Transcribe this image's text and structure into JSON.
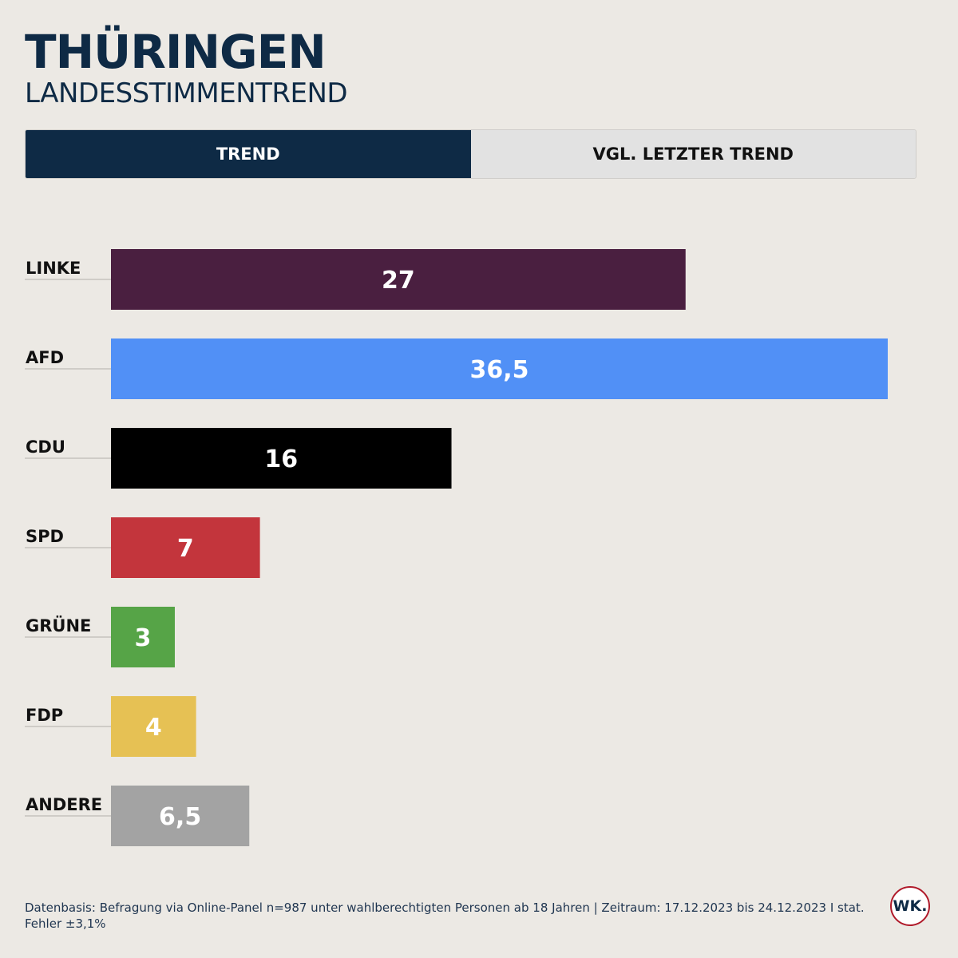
{
  "header": {
    "title": "THÜRINGEN",
    "subtitle": "LANDESSTIMMENTREND"
  },
  "tabs": [
    {
      "label": "TREND",
      "active": true
    },
    {
      "label": "VGL. LETZTER TREND",
      "active": false
    }
  ],
  "chart_data": {
    "type": "bar",
    "orientation": "horizontal",
    "categories": [
      "LINKE",
      "AFD",
      "CDU",
      "SPD",
      "GRÜNE",
      "FDP",
      "ANDERE"
    ],
    "values": [
      27,
      36.5,
      16,
      7,
      3,
      4,
      6.5
    ],
    "value_labels": [
      "27",
      "36,5",
      "16",
      "7",
      "3",
      "4",
      "6,5"
    ],
    "colors": [
      "#4a1f40",
      "#5190f6",
      "#000000",
      "#c3353c",
      "#56a447",
      "#e6c154",
      "#a3a3a3"
    ],
    "xlim": [
      0,
      36.5
    ],
    "grid": false,
    "legend": "none"
  },
  "footer": {
    "source": "Datenbasis: Befragung via Online-Panel n=987 unter wahlberechtigten Personen ab 18 Jahren | Zeitraum: 17.12.2023 bis 24.12.2023 I stat. Fehler ±3,1%",
    "logo_text": "WK."
  }
}
